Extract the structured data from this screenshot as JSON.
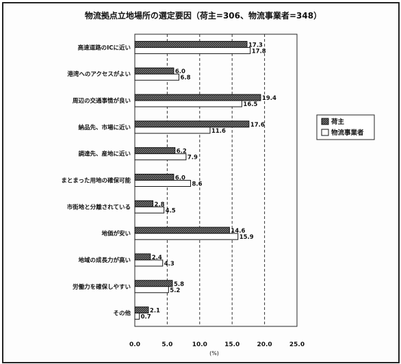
{
  "chart_data": {
    "type": "bar",
    "orientation": "horizontal",
    "title": "物流拠点立地場所の選定要因（荷主=306、物流事業者=348）",
    "categories": [
      "高速道路のICに近い",
      "港湾へのアクセスがよい",
      "周辺の交通事情が良い",
      "納品先、市場に近い",
      "調達先、産地に近い",
      "まとまった用地の確保可能",
      "市街地と分離されている",
      "地価が安い",
      "地域の成長力が高い",
      "労働力を確保しやすい",
      "その他"
    ],
    "series": [
      {
        "name": "荷主",
        "values": [
          17.3,
          6.0,
          19.4,
          17.6,
          6.2,
          6.0,
          2.8,
          14.6,
          2.4,
          5.8,
          2.1
        ],
        "labels": [
          "17.3",
          "6.0",
          "19.4",
          "17.6",
          "6.2",
          "6.0",
          "2.8",
          "14.6",
          "2.4",
          "5.8",
          "2.1"
        ],
        "color": "#4a4a4a",
        "fill_style": "hatched-dark"
      },
      {
        "name": "物流事業者",
        "values": [
          17.8,
          6.8,
          16.5,
          11.6,
          7.9,
          8.6,
          4.5,
          15.9,
          4.3,
          5.2,
          0.7
        ],
        "labels": [
          "17.8",
          "6.8",
          "16.5",
          "11.6",
          "7.9",
          "8.6",
          "4.5",
          "15.9",
          "4.3",
          "5.2",
          "0.7"
        ],
        "color": "#ffffff",
        "fill_style": "white"
      }
    ],
    "xlim": [
      0,
      25
    ],
    "xticks": [
      "0.0",
      "5.0",
      "10.0",
      "15.0",
      "20.0",
      "25.0"
    ],
    "xlabel": "(%)",
    "grid": "vertical dashed",
    "legend_position": "right"
  }
}
